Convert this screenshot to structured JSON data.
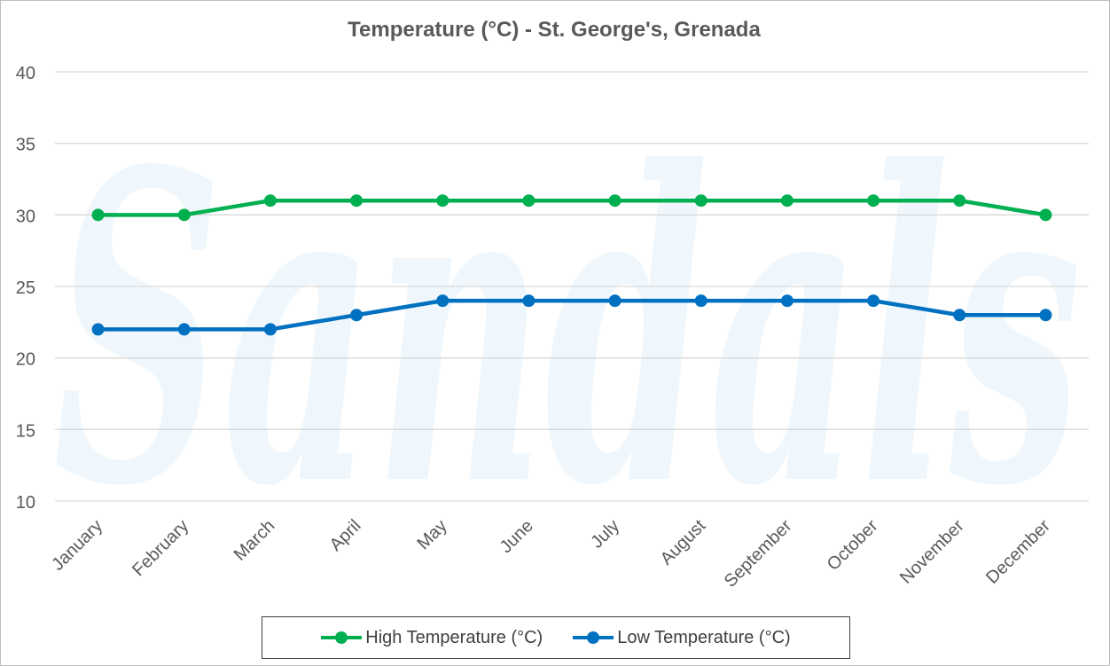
{
  "chart_data": {
    "type": "line",
    "title": "Temperature (°C) - St. George's, Grenada",
    "xlabel": "",
    "ylabel": "",
    "ylim": [
      10,
      40
    ],
    "yticks": [
      10,
      15,
      20,
      25,
      30,
      35,
      40
    ],
    "grid": true,
    "legend_position": "bottom",
    "categories": [
      "January",
      "February",
      "March",
      "April",
      "May",
      "June",
      "July",
      "August",
      "September",
      "October",
      "November",
      "December"
    ],
    "series": [
      {
        "name": "High Temperature (°C)",
        "color": "#00b050",
        "values": [
          30,
          30,
          31,
          31,
          31,
          31,
          31,
          31,
          31,
          31,
          31,
          30
        ]
      },
      {
        "name": "Low Temperature (°C)",
        "color": "#0070c0",
        "values": [
          22,
          22,
          22,
          23,
          24,
          24,
          24,
          24,
          24,
          24,
          23,
          23
        ]
      }
    ]
  },
  "watermark": {
    "text": "Sandals",
    "color": "#ebf6fc"
  }
}
